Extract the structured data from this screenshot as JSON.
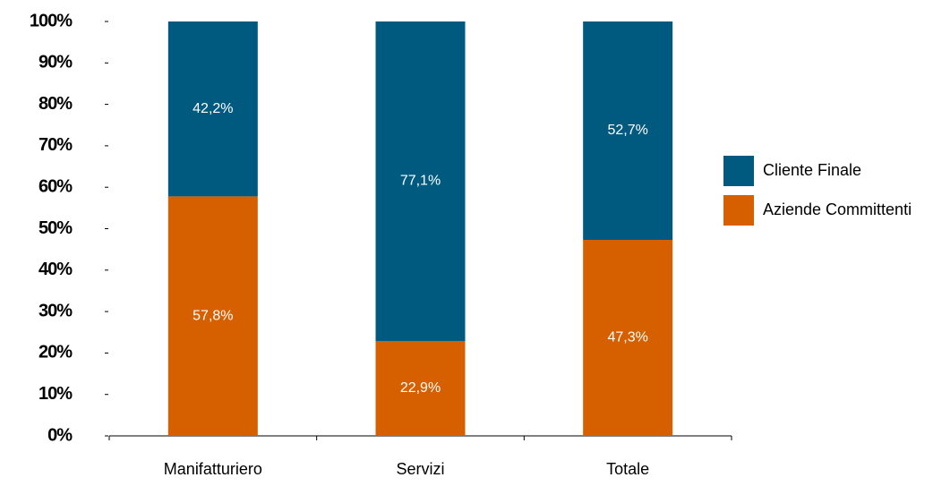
{
  "chart_data": {
    "type": "stacked_bar",
    "categories": [
      "Manifatturiero",
      "Servizi",
      "Totale"
    ],
    "series": [
      {
        "name": "Aziende Committenti",
        "color": "#d65f00",
        "values": [
          57.8,
          22.9,
          47.3
        ],
        "value_labels": [
          "57,8%",
          "22,9%",
          "47,3%"
        ]
      },
      {
        "name": "Cliente Finale",
        "color": "#005a7f",
        "values": [
          42.2,
          77.1,
          52.7
        ],
        "value_labels": [
          "42,2%",
          "77,1%",
          "52,7%"
        ]
      }
    ],
    "ylim": [
      0,
      100
    ],
    "yticks": [
      {
        "value": 0,
        "label": "0%"
      },
      {
        "value": 10,
        "label": "10%"
      },
      {
        "value": 20,
        "label": "20%"
      },
      {
        "value": 30,
        "label": "30%"
      },
      {
        "value": 40,
        "label": "40%"
      },
      {
        "value": 50,
        "label": "50%"
      },
      {
        "value": 60,
        "label": "60%"
      },
      {
        "value": 70,
        "label": "70%"
      },
      {
        "value": 80,
        "label": "80%"
      },
      {
        "value": 90,
        "label": "90%"
      },
      {
        "value": 100,
        "label": "100%"
      }
    ],
    "legend": "right"
  }
}
